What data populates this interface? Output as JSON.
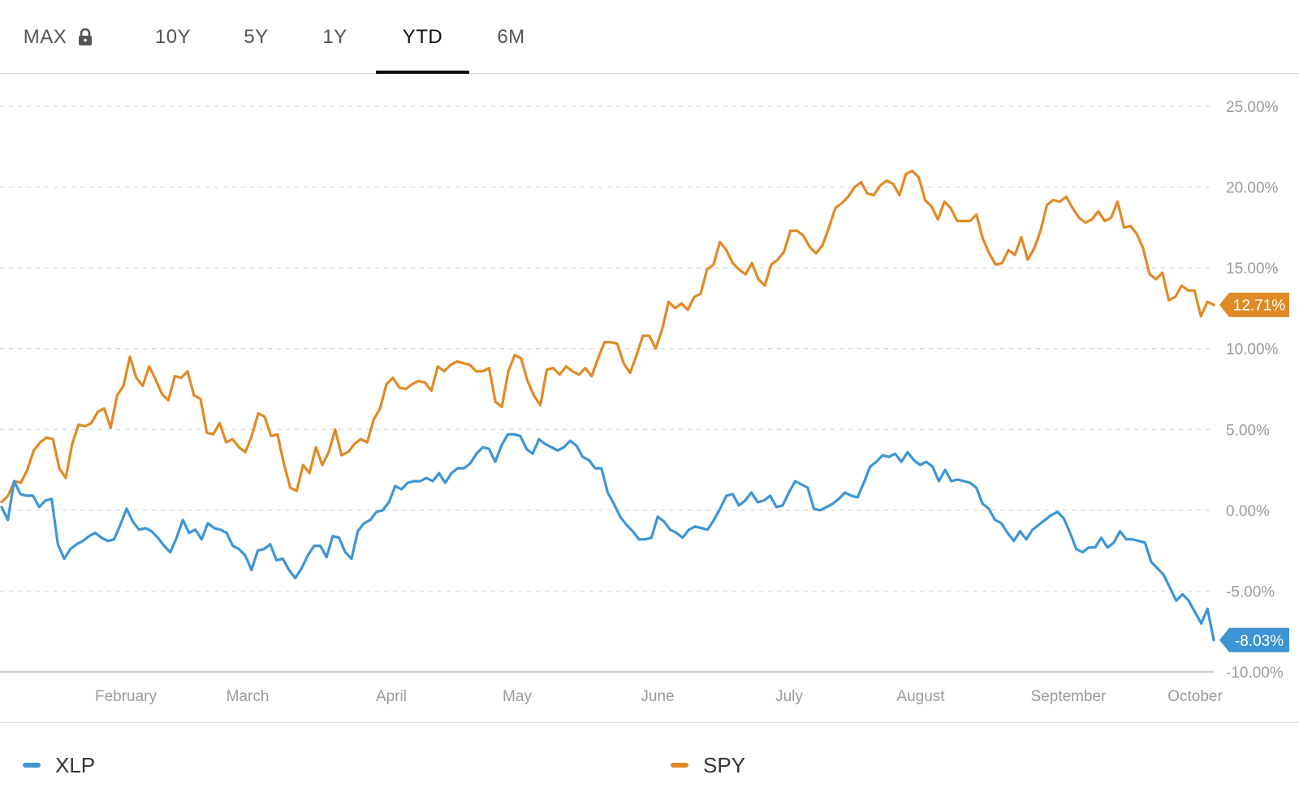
{
  "tabs": [
    {
      "label": "MAX",
      "locked": true,
      "active": false
    },
    {
      "label": "10Y",
      "active": false
    },
    {
      "label": "5Y",
      "active": false
    },
    {
      "label": "1Y",
      "active": false
    },
    {
      "label": "YTD",
      "active": true
    },
    {
      "label": "6M",
      "active": false
    }
  ],
  "chart_data": {
    "type": "line",
    "ylim": [
      -10,
      25
    ],
    "ytick_values": [
      25,
      20,
      15,
      10,
      5,
      0,
      -5,
      -10
    ],
    "ytick_labels": [
      "25.00%",
      "20.00%",
      "15.00%",
      "10.00%",
      "5.00%",
      "0.00%",
      "-5.00%",
      "-10.00%"
    ],
    "xtick_labels": [
      "February",
      "March",
      "April",
      "May",
      "June",
      "July",
      "August",
      "September",
      "October"
    ],
    "grid": true,
    "legend_position": "bottom",
    "series": [
      {
        "name": "XLP",
        "color": "#3d95d6",
        "end_label": "-8.03%",
        "values": [
          0.2,
          -0.6,
          1.8,
          1.0,
          0.9,
          0.9,
          0.2,
          0.6,
          0.7,
          -2.1,
          -3.0,
          -2.4,
          -2.1,
          -1.9,
          -1.6,
          -1.4,
          -1.7,
          -1.9,
          -1.8,
          -0.9,
          0.1,
          -0.7,
          -1.2,
          -1.1,
          -1.3,
          -1.7,
          -2.2,
          -2.6,
          -1.7,
          -0.6,
          -1.4,
          -1.2,
          -1.8,
          -0.8,
          -1.1,
          -1.2,
          -1.4,
          -2.2,
          -2.4,
          -2.8,
          -3.7,
          -2.5,
          -2.4,
          -2.1,
          -3.1,
          -3.0,
          -3.7,
          -4.2,
          -3.6,
          -2.8,
          -2.2,
          -2.2,
          -2.9,
          -1.6,
          -1.7,
          -2.6,
          -3.0,
          -1.3,
          -0.8,
          -0.6,
          -0.1,
          0.0,
          0.5,
          1.5,
          1.3,
          1.7,
          1.8,
          1.8,
          2.0,
          1.8,
          2.3,
          1.7,
          2.3,
          2.6,
          2.6,
          2.9,
          3.5,
          3.9,
          3.8,
          3.0,
          4.0,
          4.7,
          4.7,
          4.6,
          3.8,
          3.5,
          4.4,
          4.1,
          3.9,
          3.7,
          3.9,
          4.3,
          4.0,
          3.3,
          3.1,
          2.6,
          2.6,
          1.1,
          0.4,
          -0.4,
          -0.9,
          -1.3,
          -1.8,
          -1.8,
          -1.7,
          -0.4,
          -0.7,
          -1.2,
          -1.4,
          -1.7,
          -1.2,
          -1.0,
          -1.1,
          -1.2,
          -0.6,
          0.1,
          0.9,
          1.0,
          0.3,
          0.6,
          1.1,
          0.5,
          0.6,
          0.9,
          0.2,
          0.3,
          1.1,
          1.8,
          1.6,
          1.4,
          0.1,
          0.0,
          0.2,
          0.4,
          0.7,
          1.1,
          0.9,
          0.8,
          1.7,
          2.7,
          3.0,
          3.4,
          3.3,
          3.5,
          3.0,
          3.6,
          3.1,
          2.8,
          3.0,
          2.7,
          1.8,
          2.5,
          1.8,
          1.9,
          1.8,
          1.7,
          1.4,
          0.4,
          0.1,
          -0.6,
          -0.8,
          -1.4,
          -1.9,
          -1.3,
          -1.8,
          -1.2,
          -0.9,
          -0.6,
          -0.3,
          -0.1,
          -0.5,
          -1.4,
          -2.4,
          -2.6,
          -2.3,
          -2.3,
          -1.7,
          -2.3,
          -2.0,
          -1.3,
          -1.8,
          -1.8,
          -1.9,
          -2.0,
          -3.2,
          -3.6,
          -4.0,
          -4.8,
          -5.6,
          -5.2,
          -5.6,
          -6.3,
          -7.0,
          -6.1,
          -8.03
        ]
      },
      {
        "name": "SPY",
        "color": "#e08a25",
        "end_label": "12.71%",
        "values": [
          0.5,
          0.9,
          1.8,
          1.7,
          2.5,
          3.7,
          4.2,
          4.5,
          4.4,
          2.6,
          2.0,
          4.1,
          5.3,
          5.2,
          5.4,
          6.1,
          6.3,
          5.1,
          7.1,
          7.7,
          9.5,
          8.2,
          7.7,
          8.9,
          8.1,
          7.2,
          6.8,
          8.3,
          8.2,
          8.6,
          7.1,
          6.9,
          4.8,
          4.7,
          5.4,
          4.2,
          4.4,
          3.9,
          3.6,
          4.6,
          6.0,
          5.8,
          4.6,
          4.7,
          2.9,
          1.4,
          1.2,
          2.8,
          2.3,
          3.9,
          2.8,
          3.6,
          5.0,
          3.4,
          3.6,
          4.1,
          4.4,
          4.2,
          5.6,
          6.3,
          7.8,
          8.2,
          7.6,
          7.5,
          7.8,
          8.0,
          7.9,
          7.4,
          8.9,
          8.6,
          9.0,
          9.2,
          9.1,
          9.0,
          8.6,
          8.6,
          8.8,
          6.7,
          6.4,
          8.6,
          9.6,
          9.4,
          8.0,
          7.1,
          6.5,
          8.7,
          8.8,
          8.4,
          8.9,
          8.6,
          8.4,
          8.8,
          8.3,
          9.4,
          10.4,
          10.4,
          10.3,
          9.1,
          8.5,
          9.6,
          10.8,
          10.8,
          10.0,
          11.2,
          12.9,
          12.5,
          12.8,
          12.4,
          13.2,
          13.4,
          14.9,
          15.2,
          16.6,
          16.1,
          15.3,
          14.9,
          14.6,
          15.3,
          14.3,
          13.9,
          15.2,
          15.5,
          16.0,
          17.3,
          17.3,
          17.0,
          16.3,
          15.9,
          16.4,
          17.5,
          18.7,
          19.0,
          19.4,
          20.0,
          20.3,
          19.6,
          19.5,
          20.1,
          20.4,
          20.2,
          19.5,
          20.8,
          21.0,
          20.6,
          19.2,
          18.8,
          18.0,
          19.1,
          18.7,
          17.9,
          17.9,
          17.9,
          18.3,
          16.8,
          15.9,
          15.2,
          15.3,
          16.1,
          15.8,
          16.9,
          15.5,
          16.2,
          17.3,
          18.9,
          19.2,
          19.1,
          19.4,
          18.7,
          18.1,
          17.8,
          18.0,
          18.5,
          17.9,
          18.1,
          19.1,
          17.5,
          17.6,
          17.1,
          16.2,
          14.6,
          14.3,
          14.7,
          13.0,
          13.2,
          13.9,
          13.6,
          13.6,
          12.0,
          12.9,
          12.71
        ]
      }
    ]
  }
}
